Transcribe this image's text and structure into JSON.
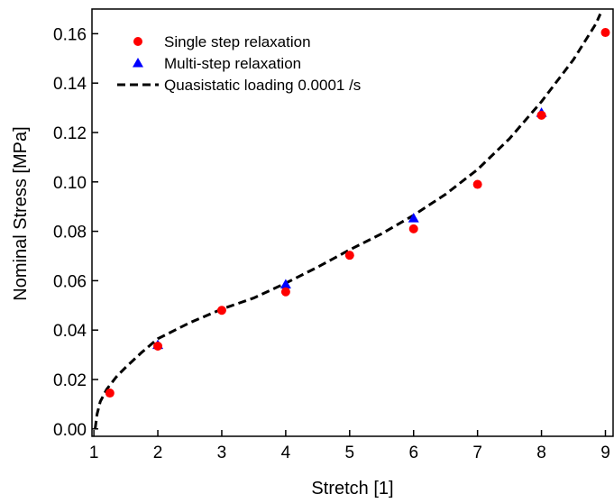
{
  "chart_data": {
    "type": "scatter",
    "xlabel": "Stretch [1]",
    "ylabel": "Nominal Stress [MPa]",
    "xlim": [
      0.97,
      9.12
    ],
    "ylim": [
      -0.003,
      0.17
    ],
    "x_ticks": [
      1,
      2,
      3,
      4,
      5,
      6,
      7,
      8,
      9
    ],
    "y_ticks": [
      0.0,
      0.02,
      0.04,
      0.06,
      0.08,
      0.1,
      0.12,
      0.14,
      0.16
    ],
    "y_tick_labels": [
      "0.00",
      "0.02",
      "0.04",
      "0.06",
      "0.08",
      "0.10",
      "0.12",
      "0.14",
      "0.16"
    ],
    "grid": false,
    "legend_position": "top-left",
    "series": [
      {
        "name": "Single step relaxation",
        "marker": "circle",
        "color": "#ff0000",
        "points": [
          [
            1.25,
            0.0145
          ],
          [
            2,
            0.0335
          ],
          [
            3,
            0.048
          ],
          [
            4,
            0.0555
          ],
          [
            5,
            0.0703
          ],
          [
            6,
            0.081
          ],
          [
            7,
            0.099
          ],
          [
            8,
            0.127
          ],
          [
            9,
            0.1605
          ]
        ]
      },
      {
        "name": "Multi-step relaxation",
        "marker": "triangle",
        "color": "#0000ff",
        "points": [
          [
            2,
            0.034
          ],
          [
            4,
            0.0585
          ],
          [
            6,
            0.0853
          ],
          [
            8,
            0.128
          ]
        ]
      },
      {
        "name": "Quasistatic loading 0.0001 /s",
        "line_style": "dashed",
        "color": "#000000",
        "points": [
          [
            1.02,
            0.0
          ],
          [
            1.05,
            0.006
          ],
          [
            1.1,
            0.011
          ],
          [
            1.2,
            0.016
          ],
          [
            1.35,
            0.021
          ],
          [
            1.5,
            0.025
          ],
          [
            1.75,
            0.031
          ],
          [
            2,
            0.0365
          ],
          [
            2.5,
            0.043
          ],
          [
            3,
            0.0485
          ],
          [
            3.5,
            0.053
          ],
          [
            4,
            0.059
          ],
          [
            4.5,
            0.0655
          ],
          [
            5,
            0.0725
          ],
          [
            5.5,
            0.079
          ],
          [
            6,
            0.0865
          ],
          [
            6.5,
            0.095
          ],
          [
            7,
            0.105
          ],
          [
            7.5,
            0.1175
          ],
          [
            8,
            0.1325
          ],
          [
            8.5,
            0.1495
          ],
          [
            8.85,
            0.164
          ],
          [
            8.92,
            0.168
          ]
        ]
      }
    ]
  }
}
